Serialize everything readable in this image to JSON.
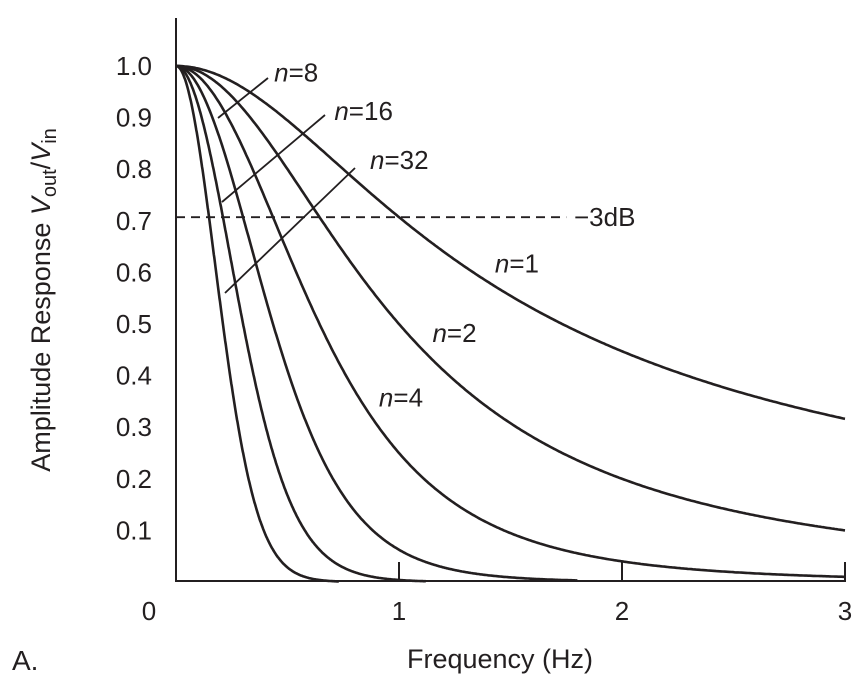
{
  "chart_data": {
    "type": "line",
    "title": "",
    "panel_label": "A.",
    "xlabel": "Frequency  (Hz)",
    "ylabel": {
      "main": "Amplitude Response ",
      "v1": "V",
      "sub1": "out",
      "slash": "/",
      "v2": "V",
      "sub2": "in"
    },
    "xlim": [
      0,
      3
    ],
    "ylim": [
      0,
      1.0
    ],
    "xticks": [
      "0",
      "1",
      "2",
      "3"
    ],
    "yticks": [
      "0.1",
      "0.2",
      "0.3",
      "0.4",
      "0.5",
      "0.6",
      "0.7",
      "0.8",
      "0.9",
      "1.0"
    ],
    "grid": false,
    "model": "y = (1 + x^2)^(-n/2)",
    "series": [
      {
        "name": "n=1",
        "n": 1,
        "x_max": 3.0
      },
      {
        "name": "n=2",
        "n": 2,
        "x_max": 3.0
      },
      {
        "name": "n=4",
        "n": 4,
        "x_max": 3.0
      },
      {
        "name": "n=8",
        "n": 8,
        "x_max": 1.8
      },
      {
        "name": "n=16",
        "n": 16,
        "x_max": 1.12
      },
      {
        "name": "n=32",
        "n": 32,
        "x_max": 0.73
      }
    ],
    "reference_line": {
      "label": "−3dB",
      "y": 0.707,
      "x_range": [
        0,
        1.75
      ]
    },
    "annotations": [
      {
        "text": "n=1",
        "x": 1.43,
        "y": 0.6
      },
      {
        "text": "n=2",
        "x": 1.15,
        "y": 0.465
      },
      {
        "text": "n=4",
        "x": 0.91,
        "y": 0.34
      },
      {
        "text": "n=8",
        "x": 0.44,
        "y": 0.97
      },
      {
        "text": "n=16",
        "x": 0.71,
        "y": 0.895
      },
      {
        "text": "n=32",
        "x": 0.87,
        "y": 0.8
      }
    ]
  }
}
